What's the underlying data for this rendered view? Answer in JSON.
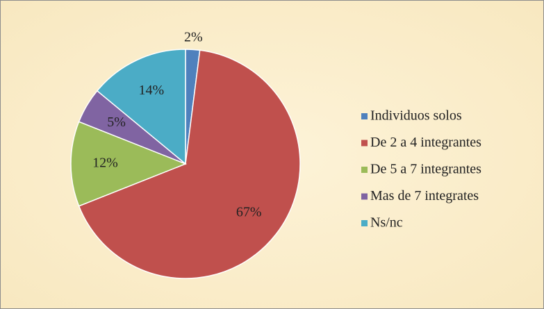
{
  "chart_data": {
    "type": "pie",
    "categories": [
      "Individuos solos",
      "De 2 a 4 integrantes",
      "De 5 a 7 integrantes",
      "Mas de 7 integrates",
      "Ns/nc"
    ],
    "values": [
      2,
      67,
      12,
      5,
      14
    ],
    "value_labels": [
      "2%",
      "67%",
      "12%",
      "5%",
      "14%"
    ],
    "colors": [
      "#4f81bd",
      "#c0504d",
      "#9bbb59",
      "#8064a2",
      "#4bacc6"
    ],
    "legend": "right"
  }
}
